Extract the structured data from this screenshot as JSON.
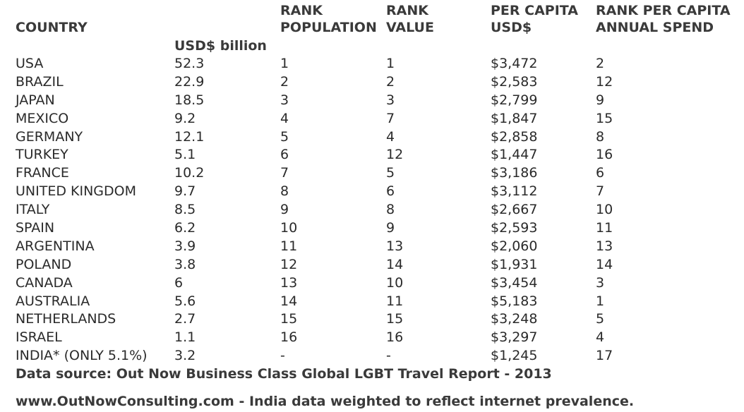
{
  "headers": {
    "country": [
      "COUNTRY"
    ],
    "value": [
      "USD$ billion"
    ],
    "rank_population": [
      "RANK",
      "POPULATION"
    ],
    "rank_value": [
      "RANK",
      "VALUE"
    ],
    "per_capita": [
      "PER CAPITA",
      "USD$"
    ],
    "rank_per_capita": [
      "RANK PER CAPITA",
      "ANNUAL SPEND"
    ]
  },
  "rows": [
    [
      "USA",
      "52.3",
      "1",
      "1",
      "$3,472",
      "2"
    ],
    [
      "BRAZIL",
      "22.9",
      "2",
      "2",
      "$2,583",
      "12"
    ],
    [
      "JAPAN",
      "18.5",
      "3",
      "3",
      "$2,799",
      "9"
    ],
    [
      "MEXICO",
      "9.2",
      "4",
      "7",
      "$1,847",
      "15"
    ],
    [
      "GERMANY",
      "12.1",
      "5",
      "4",
      "$2,858",
      "8"
    ],
    [
      "TURKEY",
      "5.1",
      "6",
      "12",
      "$1,447",
      "16"
    ],
    [
      "FRANCE",
      "10.2",
      "7",
      "5",
      "$3,186",
      "6"
    ],
    [
      "UNITED KINGDOM",
      "9.7",
      "8",
      "6",
      "$3,112",
      "7"
    ],
    [
      "ITALY",
      "8.5",
      "9",
      "8",
      "$2,667",
      "10"
    ],
    [
      "SPAIN",
      "6.2",
      "10",
      "9",
      "$2,593",
      "11"
    ],
    [
      "ARGENTINA",
      "3.9",
      "11",
      "13",
      "$2,060",
      "13"
    ],
    [
      "POLAND",
      "3.8",
      "12",
      "14",
      "$1,931",
      "14"
    ],
    [
      "CANADA",
      "6",
      "13",
      "10",
      "$3,454",
      "3"
    ],
    [
      "AUSTRALIA",
      "5.6",
      "14",
      "11",
      "$5,183",
      "1"
    ],
    [
      "NETHERLANDS",
      "2.7",
      "15",
      "15",
      "$3,248",
      "5"
    ],
    [
      "ISRAEL",
      "1.1",
      "16",
      "16",
      "$3,297",
      "4"
    ],
    [
      "INDIA* (ONLY 5.1%)",
      "3.2",
      "-",
      "-",
      "$1,245",
      "17"
    ]
  ],
  "footer": {
    "source": "Data source: Out Now Business Class Global LGBT Travel Report - 2013",
    "note": "www.OutNowConsulting.com - India data weighted to reflect internet prevalence."
  }
}
